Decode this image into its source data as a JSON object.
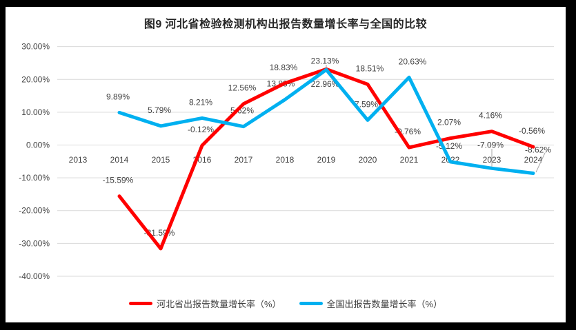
{
  "frame": {
    "background": "#000000",
    "canvas_background": "#ffffff"
  },
  "chart_data": {
    "type": "line",
    "title": "图9 河北省检验检测机构出报告数量增长率与全国的比较",
    "categories": [
      "2013",
      "2014",
      "2015",
      "2016",
      "2017",
      "2018",
      "2019",
      "2020",
      "2021",
      "2022",
      "2023",
      "2024"
    ],
    "series": [
      {
        "name": "河北省出报告数量增长率（%）",
        "color": "#FF0000",
        "values": [
          null,
          -15.59,
          -31.59,
          -0.12,
          12.56,
          18.83,
          23.13,
          18.51,
          -0.76,
          2.07,
          4.16,
          -0.56
        ],
        "labels": [
          "",
          "-15.59%",
          "-31.59%",
          "-0.12%",
          "12.56%",
          "18.83%",
          "23.13%",
          "18.51%",
          "-0.76%",
          "2.07%",
          "4.16%",
          "-0.56%"
        ]
      },
      {
        "name": "全国出报告数量增长率（%）",
        "color": "#00B0F0",
        "values": [
          null,
          9.89,
          5.79,
          8.21,
          5.62,
          13.83,
          22.96,
          7.59,
          20.63,
          -5.12,
          -7.09,
          -8.62
        ],
        "labels": [
          "",
          "9.89%",
          "5.79%",
          "8.21%",
          "5.62%",
          "13.83%",
          "22.96%",
          "7.59%",
          "20.63%",
          "-5.12%",
          "-7.09%",
          "-8.62%"
        ]
      }
    ],
    "y_axis": {
      "tick_labels": [
        "30.00%",
        "20.00%",
        "10.00%",
        "0.00%",
        "-10.00%",
        "-20.00%",
        "-30.00%",
        "-40.00%"
      ],
      "tick_values": [
        30,
        20,
        10,
        0,
        -10,
        -20,
        -30,
        -40
      ]
    },
    "ylim": [
      -40,
      30
    ],
    "grid": true,
    "gridline_color": "#D9D9D9",
    "label_color": "#404040",
    "leader_line_color": "#A6A6A6",
    "legend_position": "bottom"
  }
}
